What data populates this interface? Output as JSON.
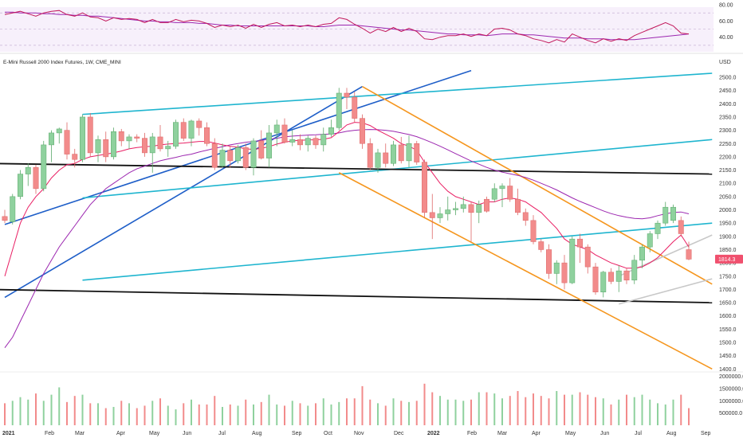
{
  "header": {
    "title": "E-Mini Russell 2000 Index Futures, 1W, CME_MINI",
    "currency": "USD"
  },
  "colors": {
    "up": "#8fd19e",
    "up_edge": "#5aa96a",
    "down": "#f28b8b",
    "down_edge": "#d66",
    "neutral": "#777777",
    "rsi": "#c2185b",
    "rsi_ma": "#9c27b0",
    "ma_fast": "#e91e63",
    "ma_slow": "#9c27b0",
    "trend_blue": "#1e5ec8",
    "trend_cyan": "#1fb5cf",
    "trend_black": "#111111",
    "trend_orange": "#f5961e",
    "trend_gray": "#c8c8c8",
    "last_price_bg": "#f0506e"
  },
  "chart_data": {
    "type": "candlestick",
    "title": "E-Mini Russell 2000 Index Futures, 1W, CME_MINI",
    "x_tick_labels": [
      "2021",
      "Feb",
      "Mar",
      "Apr",
      "May",
      "Jun",
      "Jul",
      "Aug",
      "Sep",
      "Oct",
      "Nov",
      "Dec",
      "2022",
      "Feb",
      "Mar",
      "Apr",
      "May",
      "Jun",
      "Jul",
      "Aug",
      "Sep"
    ],
    "price_axis": {
      "unit": "USD",
      "ticks": [
        1400,
        1450,
        1500,
        1550,
        1600,
        1650,
        1700,
        1750,
        1800,
        1850,
        1900,
        1950,
        2000,
        2050,
        2100,
        2150,
        2200,
        2250,
        2300,
        2350,
        2400,
        2450,
        2500
      ],
      "tick_labels": [
        "1400.0",
        "1450.0",
        "1500.0",
        "1550.0",
        "1600.0",
        "1650.0",
        "1700.0",
        "1750.0",
        "1800.0",
        "1850.0",
        "1900.0",
        "1950.0",
        "2000.0",
        "2050.0",
        "2100.0",
        "2150.0",
        "2200.0",
        "2250.0",
        "2300.0",
        "2350.0",
        "2400.0",
        "2450.0",
        "2500.0"
      ],
      "range": [
        1395,
        2530
      ]
    },
    "rsi_axis": {
      "ticks": [
        40,
        60,
        80
      ],
      "tick_labels": [
        "40.00",
        "60.00",
        "80.00"
      ],
      "range": [
        20,
        86
      ],
      "bands": [
        30,
        50,
        70
      ]
    },
    "volume_axis": {
      "ticks": [
        500000,
        1000000,
        1500000,
        2000000
      ],
      "tick_labels": [
        "500000.0",
        "1000000.0",
        "1500000.0",
        "2000000.0"
      ],
      "range": [
        0,
        2150000
      ]
    },
    "last_price": 1814.3,
    "last_price_label": "1814.3",
    "candles": [
      {
        "o": 1975,
        "h": 2000,
        "l": 1950,
        "c": 1960
      },
      {
        "o": 1955,
        "h": 2060,
        "l": 1945,
        "c": 2050
      },
      {
        "o": 2050,
        "h": 2150,
        "l": 2040,
        "c": 2135
      },
      {
        "o": 2135,
        "h": 2175,
        "l": 2090,
        "c": 2160
      },
      {
        "o": 2160,
        "h": 2170,
        "l": 2060,
        "c": 2080
      },
      {
        "o": 2080,
        "h": 2260,
        "l": 2070,
        "c": 2245
      },
      {
        "o": 2245,
        "h": 2300,
        "l": 2180,
        "c": 2290
      },
      {
        "o": 2290,
        "h": 2310,
        "l": 2250,
        "c": 2305
      },
      {
        "o": 2300,
        "h": 2330,
        "l": 2190,
        "c": 2210
      },
      {
        "o": 2210,
        "h": 2230,
        "l": 2160,
        "c": 2190
      },
      {
        "o": 2190,
        "h": 2360,
        "l": 2180,
        "c": 2350
      },
      {
        "o": 2350,
        "h": 2365,
        "l": 2200,
        "c": 2215
      },
      {
        "o": 2215,
        "h": 2280,
        "l": 2180,
        "c": 2265
      },
      {
        "o": 2265,
        "h": 2295,
        "l": 2180,
        "c": 2200
      },
      {
        "o": 2200,
        "h": 2310,
        "l": 2190,
        "c": 2295
      },
      {
        "o": 2295,
        "h": 2305,
        "l": 2240,
        "c": 2260
      },
      {
        "o": 2260,
        "h": 2285,
        "l": 2230,
        "c": 2275
      },
      {
        "o": 2275,
        "h": 2285,
        "l": 2255,
        "c": 2270
      },
      {
        "o": 2270,
        "h": 2290,
        "l": 2200,
        "c": 2215
      },
      {
        "o": 2215,
        "h": 2290,
        "l": 2140,
        "c": 2275
      },
      {
        "o": 2275,
        "h": 2320,
        "l": 2220,
        "c": 2230
      },
      {
        "o": 2230,
        "h": 2260,
        "l": 2200,
        "c": 2240
      },
      {
        "o": 2240,
        "h": 2340,
        "l": 2230,
        "c": 2330
      },
      {
        "o": 2330,
        "h": 2345,
        "l": 2260,
        "c": 2270
      },
      {
        "o": 2270,
        "h": 2340,
        "l": 2240,
        "c": 2335
      },
      {
        "o": 2335,
        "h": 2345,
        "l": 2280,
        "c": 2310
      },
      {
        "o": 2310,
        "h": 2330,
        "l": 2240,
        "c": 2250
      },
      {
        "o": 2250,
        "h": 2270,
        "l": 2150,
        "c": 2160
      },
      {
        "o": 2165,
        "h": 2250,
        "l": 2160,
        "c": 2225
      },
      {
        "o": 2225,
        "h": 2240,
        "l": 2160,
        "c": 2185
      },
      {
        "o": 2185,
        "h": 2245,
        "l": 2175,
        "c": 2235
      },
      {
        "o": 2235,
        "h": 2250,
        "l": 2150,
        "c": 2160
      },
      {
        "o": 2160,
        "h": 2270,
        "l": 2130,
        "c": 2260
      },
      {
        "o": 2260,
        "h": 2300,
        "l": 2190,
        "c": 2195
      },
      {
        "o": 2195,
        "h": 2320,
        "l": 2160,
        "c": 2290
      },
      {
        "o": 2290,
        "h": 2340,
        "l": 2240,
        "c": 2320
      },
      {
        "o": 2320,
        "h": 2345,
        "l": 2250,
        "c": 2255
      },
      {
        "o": 2255,
        "h": 2300,
        "l": 2240,
        "c": 2265
      },
      {
        "o": 2265,
        "h": 2285,
        "l": 2225,
        "c": 2245
      },
      {
        "o": 2245,
        "h": 2280,
        "l": 2220,
        "c": 2270
      },
      {
        "o": 2270,
        "h": 2280,
        "l": 2230,
        "c": 2245
      },
      {
        "o": 2245,
        "h": 2310,
        "l": 2220,
        "c": 2285
      },
      {
        "o": 2285,
        "h": 2340,
        "l": 2275,
        "c": 2310
      },
      {
        "o": 2310,
        "h": 2460,
        "l": 2300,
        "c": 2440
      },
      {
        "o": 2440,
        "h": 2460,
        "l": 2380,
        "c": 2425
      },
      {
        "o": 2425,
        "h": 2445,
        "l": 2330,
        "c": 2345
      },
      {
        "o": 2345,
        "h": 2360,
        "l": 2230,
        "c": 2250
      },
      {
        "o": 2250,
        "h": 2270,
        "l": 2150,
        "c": 2160
      },
      {
        "o": 2160,
        "h": 2230,
        "l": 2140,
        "c": 2215
      },
      {
        "o": 2215,
        "h": 2250,
        "l": 2160,
        "c": 2175
      },
      {
        "o": 2175,
        "h": 2260,
        "l": 2165,
        "c": 2245
      },
      {
        "o": 2245,
        "h": 2275,
        "l": 2175,
        "c": 2185
      },
      {
        "o": 2185,
        "h": 2280,
        "l": 2160,
        "c": 2250
      },
      {
        "o": 2250,
        "h": 2260,
        "l": 2170,
        "c": 2180
      },
      {
        "o": 2180,
        "h": 2190,
        "l": 1970,
        "c": 1990
      },
      {
        "o": 1990,
        "h": 2060,
        "l": 1890,
        "c": 1970
      },
      {
        "o": 1970,
        "h": 2010,
        "l": 1950,
        "c": 1985
      },
      {
        "o": 1985,
        "h": 2050,
        "l": 1960,
        "c": 2000
      },
      {
        "o": 2000,
        "h": 2030,
        "l": 1980,
        "c": 2005
      },
      {
        "o": 2005,
        "h": 2050,
        "l": 1990,
        "c": 2020
      },
      {
        "o": 2020,
        "h": 2030,
        "l": 1880,
        "c": 1990
      },
      {
        "o": 1990,
        "h": 2035,
        "l": 1950,
        "c": 2020
      },
      {
        "o": 2040,
        "h": 2050,
        "l": 1990,
        "c": 1995
      },
      {
        "o": 2040,
        "h": 2100,
        "l": 2030,
        "c": 2080
      },
      {
        "o": 2080,
        "h": 2100,
        "l": 2010,
        "c": 2090
      },
      {
        "o": 2090,
        "h": 2120,
        "l": 2030,
        "c": 2040
      },
      {
        "o": 2040,
        "h": 2080,
        "l": 1980,
        "c": 1990
      },
      {
        "o": 1990,
        "h": 2005,
        "l": 1940,
        "c": 1960
      },
      {
        "o": 1960,
        "h": 1980,
        "l": 1870,
        "c": 1880
      },
      {
        "o": 1880,
        "h": 1890,
        "l": 1840,
        "c": 1850
      },
      {
        "o": 1850,
        "h": 1870,
        "l": 1740,
        "c": 1760
      },
      {
        "o": 1760,
        "h": 1810,
        "l": 1720,
        "c": 1800
      },
      {
        "o": 1800,
        "h": 1830,
        "l": 1700,
        "c": 1725
      },
      {
        "o": 1725,
        "h": 1900,
        "l": 1720,
        "c": 1890
      },
      {
        "o": 1890,
        "h": 1910,
        "l": 1800,
        "c": 1860
      },
      {
        "o": 1860,
        "h": 1870,
        "l": 1760,
        "c": 1785
      },
      {
        "o": 1785,
        "h": 1800,
        "l": 1680,
        "c": 1690
      },
      {
        "o": 1690,
        "h": 1770,
        "l": 1670,
        "c": 1765
      },
      {
        "o": 1765,
        "h": 1780,
        "l": 1720,
        "c": 1730
      },
      {
        "o": 1730,
        "h": 1790,
        "l": 1690,
        "c": 1770
      },
      {
        "o": 1770,
        "h": 1780,
        "l": 1720,
        "c": 1735
      },
      {
        "o": 1735,
        "h": 1830,
        "l": 1720,
        "c": 1810
      },
      {
        "o": 1810,
        "h": 1870,
        "l": 1780,
        "c": 1860
      },
      {
        "o": 1860,
        "h": 1920,
        "l": 1840,
        "c": 1910
      },
      {
        "o": 1910,
        "h": 1960,
        "l": 1890,
        "c": 1950
      },
      {
        "o": 1950,
        "h": 2030,
        "l": 1940,
        "c": 2010
      },
      {
        "o": 1960,
        "h": 2020,
        "l": 1950,
        "c": 2010
      },
      {
        "o": 1960,
        "h": 1975,
        "l": 1900,
        "c": 1910
      },
      {
        "o": 1850,
        "h": 1880,
        "l": 1810,
        "c": 1814
      }
    ],
    "series": [
      {
        "values": [
          1750,
          1850,
          1950,
          2010,
          2050,
          2080,
          2120,
          2150,
          2170,
          2175,
          2190,
          2200,
          2205,
          2210,
          2215,
          2222,
          2230,
          2235,
          2238,
          2240,
          2245,
          2248,
          2250,
          2252,
          2255,
          2258,
          2258,
          2252,
          2245,
          2240,
          2236,
          2230,
          2228,
          2232,
          2238,
          2248,
          2255,
          2260,
          2262,
          2264,
          2264,
          2266,
          2272,
          2295,
          2320,
          2330,
          2328,
          2318,
          2300,
          2285,
          2270,
          2250,
          2240,
          2225,
          2180,
          2140,
          2100,
          2070,
          2050,
          2040,
          2030,
          2020,
          2030,
          2030,
          2040,
          2045,
          2040,
          2030,
          2010,
          1990,
          1960,
          1930,
          1890,
          1870,
          1860,
          1850,
          1830,
          1815,
          1800,
          1790,
          1780,
          1780,
          1785,
          1800,
          1820,
          1850,
          1880,
          1905,
          1860
        ]
      },
      {
        "values": [
          1480,
          1520,
          1580,
          1640,
          1700,
          1760,
          1810,
          1860,
          1900,
          1940,
          1980,
          2020,
          2050,
          2080,
          2100,
          2120,
          2140,
          2155,
          2165,
          2175,
          2185,
          2192,
          2198,
          2205,
          2210,
          2218,
          2225,
          2232,
          2238,
          2245,
          2250,
          2255,
          2258,
          2262,
          2266,
          2270,
          2275,
          2278,
          2280,
          2282,
          2283,
          2285,
          2286,
          2290,
          2296,
          2300,
          2302,
          2303,
          2302,
          2300,
          2296,
          2290,
          2284,
          2276,
          2265,
          2253,
          2240,
          2226,
          2212,
          2198,
          2184,
          2172,
          2160,
          2150,
          2142,
          2136,
          2130,
          2122,
          2112,
          2100,
          2088,
          2075,
          2060,
          2045,
          2032,
          2020,
          2008,
          1996,
          1986,
          1978,
          1972,
          1968,
          1966,
          1970,
          1978,
          1985,
          1990,
          1992,
          1985
        ]
      }
    ],
    "volume": [
      900000,
      1000000,
      1150000,
      1050000,
      1300000,
      1000000,
      1250000,
      1550000,
      950000,
      1200000,
      1250000,
      900000,
      900000,
      700000,
      750000,
      1000000,
      900000,
      700000,
      800000,
      1000000,
      1100000,
      800000,
      650000,
      900000,
      1050000,
      850000,
      850000,
      1200000,
      750000,
      850000,
      800000,
      1050000,
      850000,
      950000,
      1250000,
      850000,
      800000,
      1000000,
      900000,
      800000,
      900000,
      1100000,
      850000,
      950000,
      1100000,
      1100000,
      1600000,
      1050000,
      900000,
      800000,
      1100000,
      1000000,
      950000,
      1000000,
      1700000,
      1350000,
      1200000,
      1050000,
      1050000,
      1000000,
      1050000,
      1350000,
      1350000,
      1300000,
      1100000,
      1200000,
      1400000,
      1150000,
      1300000,
      1200000,
      1100000,
      1400000,
      1250000,
      1250000,
      1350000,
      1250000,
      1150000,
      1100000,
      850000,
      1050000,
      1250000,
      1150000,
      1250000,
      1050000,
      900000,
      850000,
      1050000,
      1250000,
      700000
    ]
  },
  "rsi_series": [
    68,
    70,
    72,
    69,
    66,
    70,
    72,
    73,
    68,
    66,
    70,
    65,
    64,
    60,
    64,
    62,
    63,
    62,
    58,
    62,
    58,
    58,
    62,
    59,
    61,
    60,
    57,
    52,
    55,
    53,
    55,
    51,
    56,
    52,
    56,
    58,
    54,
    55,
    53,
    55,
    53,
    56,
    57,
    64,
    62,
    56,
    51,
    45,
    50,
    47,
    52,
    47,
    51,
    47,
    38,
    37,
    40,
    42,
    42,
    44,
    41,
    44,
    42,
    50,
    51,
    49,
    44,
    42,
    38,
    36,
    33,
    37,
    34,
    44,
    40,
    36,
    33,
    38,
    35,
    38,
    36,
    42,
    46,
    50,
    54,
    58,
    54,
    45,
    44
  ],
  "rsi_ma_series": [
    71,
    71,
    70,
    70,
    70,
    69,
    69,
    68,
    68,
    67,
    67,
    66,
    66,
    65,
    64,
    63,
    62,
    61,
    60,
    60,
    59,
    59,
    58,
    58,
    58,
    57,
    57,
    56,
    55,
    55,
    54,
    54,
    54,
    54,
    54,
    54,
    54,
    54,
    54,
    54,
    53,
    53,
    54,
    55,
    55,
    55,
    54,
    53,
    52,
    51,
    50,
    49,
    49,
    48,
    47,
    46,
    45,
    44,
    44,
    43,
    43,
    43,
    42,
    43,
    44,
    44,
    44,
    43,
    43,
    42,
    41,
    40,
    39,
    39,
    39,
    38,
    38,
    38,
    37,
    37,
    37,
    37,
    38,
    39,
    40,
    41,
    42,
    43,
    44
  ],
  "trendlines": {
    "blue": [
      [
        0,
        1945,
        60,
        2525
      ],
      [
        0,
        1670,
        46,
        2465
      ]
    ],
    "cyan": [
      [
        10,
        2360,
        91,
        2515
      ],
      [
        10,
        2045,
        91,
        2265
      ],
      [
        10,
        1735,
        91,
        1950
      ]
    ],
    "black": [
      [
        -2,
        2175,
        91,
        2135
      ],
      [
        -2,
        1700,
        91,
        1650
      ]
    ],
    "orange": [
      [
        46,
        2465,
        91,
        1720
      ],
      [
        43,
        2140,
        91,
        1400
      ]
    ],
    "gray": [
      [
        79,
        1645,
        91,
        1740
      ],
      [
        79,
        1750,
        91,
        1905
      ]
    ]
  }
}
